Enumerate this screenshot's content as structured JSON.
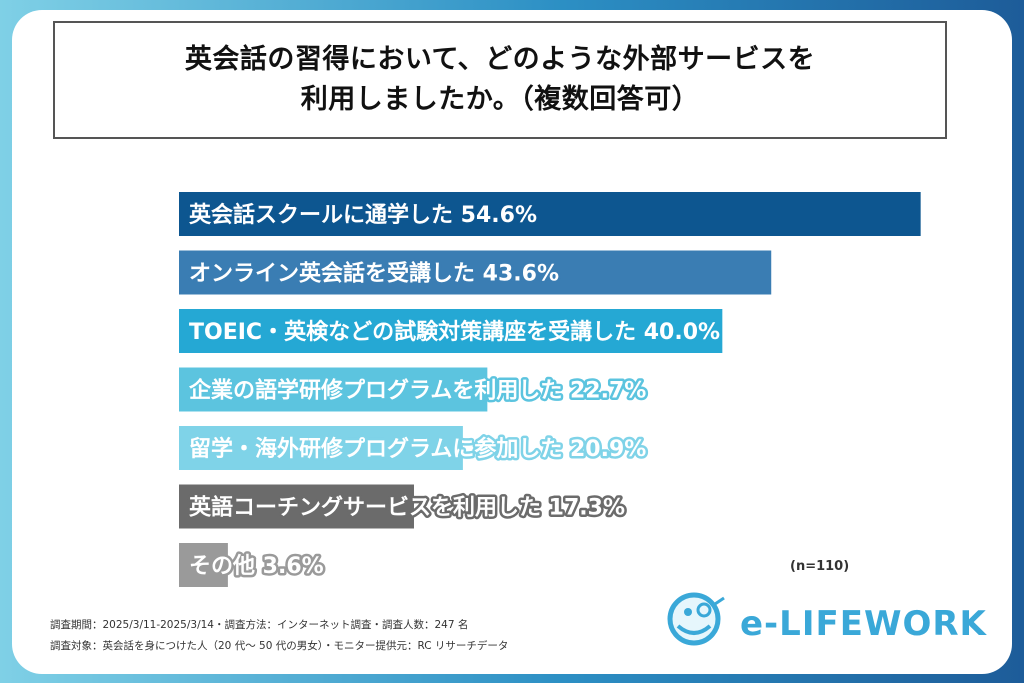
{
  "title_lines": [
    "英会話の習得において、どのような外部サービスを",
    "利用しましたか。（複数回答可）"
  ],
  "chart_data": {
    "type": "bar",
    "orientation": "horizontal",
    "categories": [
      "英会話スクールに通学した",
      "オンライン英会話を受講した",
      "TOEIC・英検などの試験対策講座を受講した",
      "企業の語学研修プログラムを利用した",
      "留学・海外研修プログラムに参加した",
      "英語コーチングサービスを利用した",
      "その他"
    ],
    "values": [
      54.6,
      43.6,
      40.0,
      22.7,
      20.9,
      17.3,
      3.6
    ],
    "value_labels": [
      "54.6%",
      "43.6%",
      "40.0%",
      "22.7%",
      "20.9%",
      "17.3%",
      "3.6%"
    ],
    "bar_colors": [
      "#0d5690",
      "#3a7db3",
      "#25a8d4",
      "#5cc4df",
      "#7fd3e8",
      "#6b6b6b",
      "#9a9a9a"
    ],
    "outline_colors": [
      "#0d5690",
      "#3a7db3",
      "#25a8d4",
      "#5cc4df",
      "#7fd3e8",
      "#6b6b6b",
      "#9a9a9a"
    ],
    "xlim": [
      0,
      60
    ]
  },
  "sample_note": "(n=110)",
  "footnotes": [
    "調査期間：2025/3/11-2025/3/14・調査方法：インターネット調査・調査人数：247 名",
    "調査対象：英会話を身につけた人（20 代～ 50 代の男女）・モニター提供元：RC リサーチデータ"
  ],
  "logo": {
    "text": "e-LIFEWORK",
    "color": "#3aa8d8",
    "icon": "smiling-face-logo-icon"
  }
}
